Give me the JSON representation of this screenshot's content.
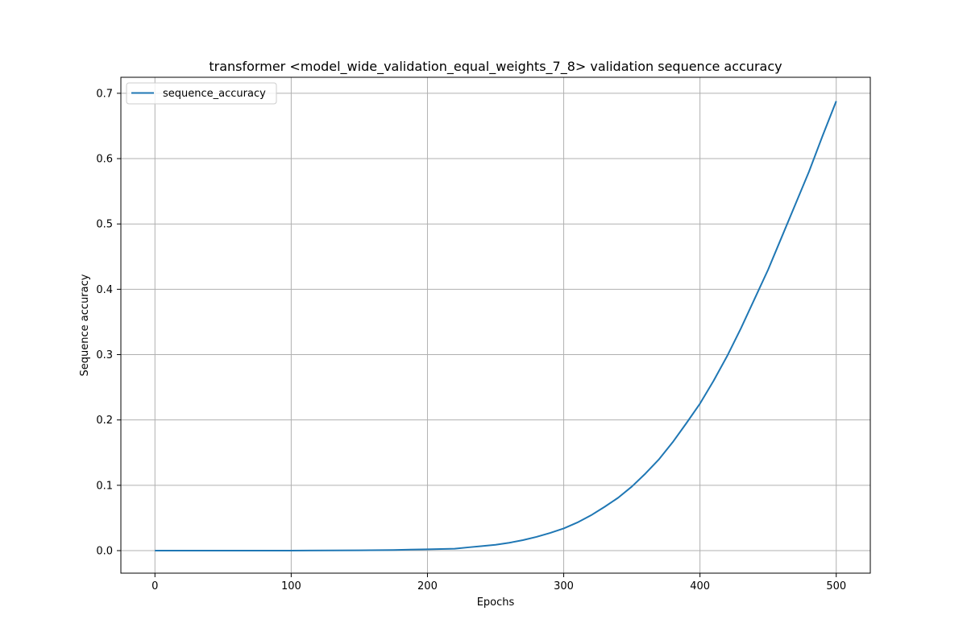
{
  "chart_data": {
    "type": "line",
    "title": "transformer <model_wide_validation_equal_weights_7_8> validation sequence accuracy",
    "xlabel": "Epochs",
    "ylabel": "Sequence accuracy",
    "xlim": [
      -25,
      525
    ],
    "ylim": [
      -0.0345,
      0.7245
    ],
    "xticks": [
      0,
      100,
      200,
      300,
      400,
      500
    ],
    "xtick_labels": [
      "0",
      "100",
      "200",
      "300",
      "400",
      "500"
    ],
    "yticks": [
      0.0,
      0.1,
      0.2,
      0.3,
      0.4,
      0.5,
      0.6,
      0.7
    ],
    "ytick_labels": [
      "0.0",
      "0.1",
      "0.2",
      "0.3",
      "0.4",
      "0.5",
      "0.6",
      "0.7"
    ],
    "grid": true,
    "legend_position": "top-left",
    "series": [
      {
        "name": "sequence_accuracy",
        "color": "#1f77b4",
        "x": [
          0,
          50,
          100,
          150,
          175,
          200,
          210,
          220,
          230,
          240,
          250,
          260,
          270,
          280,
          290,
          300,
          310,
          320,
          330,
          340,
          350,
          360,
          370,
          380,
          390,
          400,
          410,
          420,
          430,
          440,
          450,
          460,
          470,
          480,
          490,
          500
        ],
        "y": [
          0.0,
          0.0,
          0.0,
          0.0005,
          0.001,
          0.002,
          0.0025,
          0.003,
          0.005,
          0.007,
          0.009,
          0.012,
          0.016,
          0.021,
          0.027,
          0.034,
          0.043,
          0.054,
          0.067,
          0.081,
          0.098,
          0.118,
          0.14,
          0.166,
          0.195,
          0.225,
          0.26,
          0.298,
          0.34,
          0.385,
          0.43,
          0.48,
          0.53,
          0.58,
          0.635,
          0.688
        ]
      }
    ]
  }
}
